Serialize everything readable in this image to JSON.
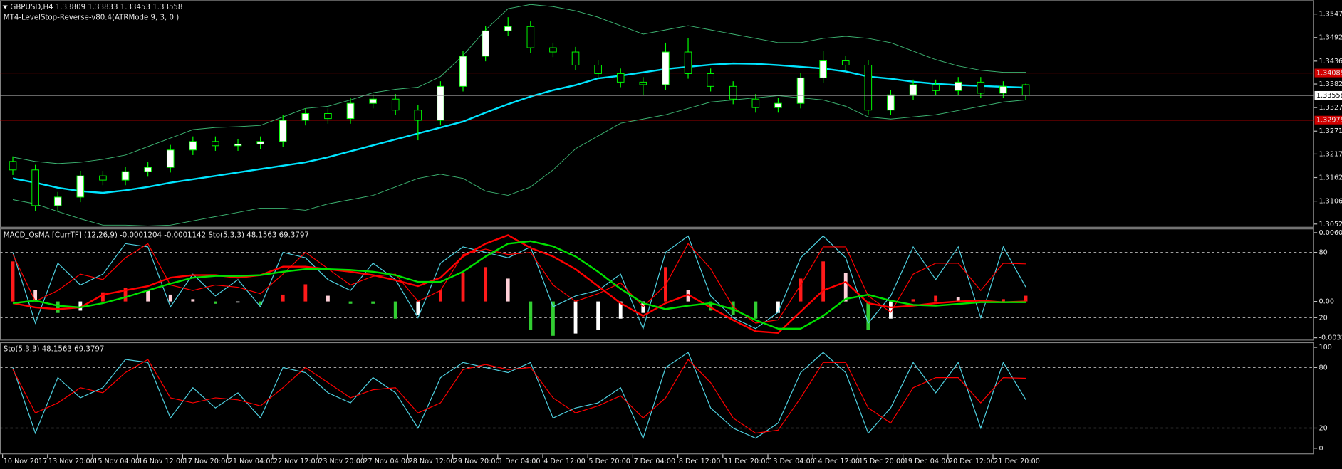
{
  "chart_data": [
    {
      "type": "candlestick",
      "title": "GBPUSD,H4  1.33809 1.33833 1.33453 1.33558",
      "subtitle": "MT4-LevelStop-Reverse-v80.4(ATRMode 9, 3, 0 )",
      "open": [
        1.32,
        1.318,
        1.3096,
        1.3116,
        1.3166,
        1.3156,
        1.3176,
        1.3186,
        1.3227,
        1.3247,
        1.3237,
        1.3241,
        1.3247,
        1.3297,
        1.3313,
        1.3301,
        1.3337,
        1.3347,
        1.3321,
        1.3297,
        1.3377,
        1.3448,
        1.3508,
        1.3518,
        1.3468,
        1.3458,
        1.3427,
        1.3407,
        1.3387,
        1.3381,
        1.3458,
        1.3407,
        1.3377,
        1.3347,
        1.3327,
        1.3337,
        1.3397,
        1.3437,
        1.3427,
        1.3321,
        1.3357,
        1.3381,
        1.3367,
        1.3387,
        1.3361,
        1.33809
      ],
      "high": [
        1.3212,
        1.3192,
        1.3128,
        1.3178,
        1.3178,
        1.3188,
        1.3198,
        1.3239,
        1.3259,
        1.3259,
        1.3253,
        1.3259,
        1.3309,
        1.3325,
        1.3325,
        1.3349,
        1.3359,
        1.3359,
        1.3333,
        1.3389,
        1.346,
        1.352,
        1.354,
        1.353,
        1.348,
        1.347,
        1.3439,
        1.3419,
        1.3399,
        1.348,
        1.349,
        1.3419,
        1.3389,
        1.3359,
        1.3349,
        1.3409,
        1.346,
        1.3449,
        1.3439,
        1.3369,
        1.3393,
        1.3393,
        1.3399,
        1.3399,
        1.3389,
        1.33833
      ],
      "low": [
        1.3168,
        1.3084,
        1.3084,
        1.3104,
        1.3144,
        1.3144,
        1.3164,
        1.3174,
        1.3215,
        1.3225,
        1.3225,
        1.3229,
        1.3235,
        1.3285,
        1.3289,
        1.3289,
        1.3325,
        1.3309,
        1.325,
        1.3285,
        1.3365,
        1.3436,
        1.3496,
        1.3456,
        1.3446,
        1.3415,
        1.3395,
        1.3375,
        1.3355,
        1.3369,
        1.3395,
        1.3365,
        1.3335,
        1.3315,
        1.3315,
        1.3325,
        1.3385,
        1.3415,
        1.3309,
        1.3309,
        1.3345,
        1.3355,
        1.3355,
        1.3349,
        1.3349,
        1.33453
      ],
      "close": [
        1.318,
        1.3096,
        1.3116,
        1.3166,
        1.3156,
        1.3176,
        1.3186,
        1.3227,
        1.3247,
        1.3237,
        1.3241,
        1.3247,
        1.3297,
        1.3313,
        1.3301,
        1.3337,
        1.3347,
        1.3321,
        1.3297,
        1.3377,
        1.3448,
        1.3508,
        1.3518,
        1.3468,
        1.3458,
        1.3427,
        1.3407,
        1.3387,
        1.3381,
        1.3458,
        1.3407,
        1.3377,
        1.3347,
        1.3327,
        1.3337,
        1.3397,
        1.3437,
        1.3427,
        1.3321,
        1.3357,
        1.3381,
        1.3367,
        1.3387,
        1.3361,
        1.3377,
        1.33558
      ],
      "candle_color": "#00ff00",
      "lines": [
        {
          "color": "#00e5ff",
          "values": [
            1.316,
            1.315,
            1.3138,
            1.313,
            1.3126,
            1.3132,
            1.314,
            1.315,
            1.3158,
            1.3166,
            1.3174,
            1.3182,
            1.319,
            1.3198,
            1.321,
            1.3224,
            1.3238,
            1.3252,
            1.3266,
            1.328,
            1.3294,
            1.3315,
            1.3335,
            1.3353,
            1.3368,
            1.338,
            1.3396,
            1.3402,
            1.341,
            1.3418,
            1.3423,
            1.3428,
            1.3431,
            1.343,
            1.3427,
            1.3423,
            1.3419,
            1.3412,
            1.34,
            1.3395,
            1.3388,
            1.3383,
            1.338,
            1.3378,
            1.3376,
            1.3374
          ]
        },
        {
          "color": "#3cb371",
          "values": [
            1.321,
            1.32,
            1.3195,
            1.3198,
            1.3205,
            1.3215,
            1.3235,
            1.3255,
            1.3275,
            1.328,
            1.3282,
            1.3285,
            1.3305,
            1.3325,
            1.333,
            1.3345,
            1.3362,
            1.337,
            1.3375,
            1.34,
            1.345,
            1.351,
            1.356,
            1.357,
            1.3565,
            1.3555,
            1.354,
            1.352,
            1.35,
            1.351,
            1.352,
            1.351,
            1.35,
            1.349,
            1.348,
            1.348,
            1.349,
            1.3495,
            1.349,
            1.348,
            1.346,
            1.344,
            1.3425,
            1.3415,
            1.341,
            1.341
          ]
        },
        {
          "color": "#3cb371",
          "values": [
            1.311,
            1.31,
            1.3082,
            1.3065,
            1.305,
            1.305,
            1.3048,
            1.305,
            1.306,
            1.307,
            1.308,
            1.309,
            1.309,
            1.3085,
            1.31,
            1.311,
            1.312,
            1.314,
            1.316,
            1.317,
            1.316,
            1.313,
            1.312,
            1.314,
            1.318,
            1.323,
            1.326,
            1.329,
            1.33,
            1.331,
            1.3325,
            1.334,
            1.3345,
            1.335,
            1.3355,
            1.335,
            1.3345,
            1.333,
            1.3305,
            1.33,
            1.3305,
            1.331,
            1.332,
            1.333,
            1.334,
            1.3345
          ]
        }
      ],
      "levels": [
        1.34085,
        1.32975
      ],
      "level_color": "#d00000",
      "ylim": [
        1.3046,
        1.3578
      ],
      "yticks": [
        {
          "value": 1.35475,
          "label": "1.35475"
        },
        {
          "value": 1.3492,
          "label": "1.34920"
        },
        {
          "value": 1.34365,
          "label": "1.34365"
        },
        {
          "value": 1.33825,
          "label": "1.33825"
        },
        {
          "value": 1.3327,
          "label": "1.33270"
        },
        {
          "value": 1.32715,
          "label": "1.32715"
        },
        {
          "value": 1.32175,
          "label": "1.32175"
        },
        {
          "value": 1.3162,
          "label": "1.31620"
        },
        {
          "value": 1.31065,
          "label": "1.31065"
        },
        {
          "value": 1.30525,
          "label": "1.30525"
        }
      ]
    },
    {
      "type": "osma",
      "title": "MACD_OsMA [CurrTF] (12,26,9) -0.0001204 -0.0001142  Sto(5,3,3) 48.1563 69.3797",
      "values": [
        0.0035,
        0.001,
        -0.001,
        -0.0008,
        0.0008,
        0.0012,
        0.001,
        0.0006,
        0.0002,
        -0.0002,
        -0.0001,
        -0.0003,
        0.0006,
        0.0015,
        0.0005,
        -0.0002,
        -0.0002,
        -0.0015,
        -0.0012,
        0.001,
        0.0025,
        0.003,
        0.002,
        -0.0025,
        -0.003,
        -0.0028,
        -0.0025,
        -0.0015,
        -0.001,
        0.003,
        0.001,
        -0.0008,
        -0.0012,
        -0.0015,
        -0.001,
        0.002,
        0.0035,
        0.0025,
        -0.0025,
        -0.0015,
        0.0002,
        0.0005,
        0.0004,
        0.0001,
        0.0002,
        0.0005
      ],
      "colors": {
        "pos_up": "#ff1a1a",
        "pos_down": "#ffd0d8",
        "neg_down": "#32cd32",
        "neg_up": "#ffffff"
      },
      "lines": [
        {
          "color": "#ff0000",
          "values": [
            -0.00015,
            -0.00052,
            -0.00067,
            -0.00052,
            0.00059,
            0.00097,
            0.00134,
            0.00208,
            0.0023,
            0.0023,
            0.00208,
            0.0023,
            0.00304,
            0.00304,
            0.00282,
            0.0026,
            0.0023,
            0.00186,
            0.00134,
            0.00208,
            0.00393,
            0.00505,
            0.00579,
            0.00468,
            0.00393,
            0.00282,
            0.00134,
            -0.00015,
            -0.00126,
            -0.00015,
            0.00059,
            -0.00052,
            -0.00163,
            -0.0026,
            -0.00275,
            -0.00089,
            0.00097,
            0.00171,
            -0.00015,
            -0.00052,
            -0.00037,
            -0.00015,
            0,
            7e-05,
            -7e-05,
            0
          ]
        },
        {
          "color": "#00e000",
          "values": [
            -0.00015,
            7e-05,
            -0.00037,
            -0.00052,
            -0.00015,
            0.00037,
            0.00097,
            0.00156,
            0.00208,
            0.00223,
            0.00223,
            0.0023,
            0.0026,
            0.00282,
            0.00282,
            0.00275,
            0.0026,
            0.0023,
            0.00171,
            0.00171,
            0.0026,
            0.00393,
            0.00505,
            0.00527,
            0.00482,
            0.00393,
            0.0026,
            0.00111,
            -0.00015,
            -0.00067,
            -0.00037,
            -0.00015,
            -0.00067,
            -0.00163,
            -0.00238,
            -0.00238,
            -0.00126,
            0.00022,
            0.00059,
            7e-05,
            -0.0003,
            -0.00037,
            -0.00022,
            -7e-05,
            -7e-05,
            -7e-05
          ]
        }
      ],
      "ylim": [
        -0.00334,
        0.0063
      ],
      "yticks": [
        0.006012,
        {
          "value": 0,
          "label": "0.00"
        },
        -0.003175
      ],
      "y2lim": [
        -0.2,
        101.1
      ],
      "y2ticks": [
        80,
        20
      ]
    },
    {
      "type": "line",
      "title": "Sto(5,3,3) 48.1563 69.3797",
      "series": [
        {
          "color": "#4fd0e0",
          "values": [
            80,
            15,
            70,
            50,
            60,
            88,
            85,
            30,
            60,
            40,
            55,
            30,
            80,
            75,
            55,
            45,
            70,
            55,
            20,
            70,
            85,
            80,
            75,
            85,
            30,
            40,
            45,
            60,
            10,
            80,
            95,
            40,
            20,
            10,
            25,
            75,
            95,
            75,
            15,
            40,
            85,
            55,
            85,
            20,
            85,
            48.1563
          ]
        },
        {
          "color": "#ff0000",
          "values": [
            78,
            35,
            45,
            60,
            55,
            75,
            88,
            50,
            45,
            50,
            48,
            42,
            60,
            80,
            65,
            50,
            58,
            60,
            35,
            45,
            78,
            83,
            78,
            80,
            50,
            35,
            42,
            52,
            30,
            50,
            88,
            65,
            30,
            15,
            18,
            50,
            85,
            85,
            40,
            25,
            60,
            70,
            70,
            45,
            70,
            69.3797
          ]
        }
      ],
      "ylim": [
        -5.1,
        104.2
      ],
      "yticks": [
        100,
        80,
        20,
        0
      ],
      "x_labels": [
        "10 Nov 2017",
        "13 Nov 20:00",
        "15 Nov 04:00",
        "16 Nov 12:00",
        "17 Nov 20:00",
        "21 Nov 04:00",
        "22 Nov 12:00",
        "23 Nov 20:00",
        "27 Nov 04:00",
        "28 Nov 12:00",
        "29 Nov 20:00",
        "1 Dec 04:00",
        "4 Dec 12:00",
        "5 Dec 20:00",
        "7 Dec 04:00",
        "8 Dec 12:00",
        "11 Dec 20:00",
        "13 Dec 04:00",
        "14 Dec 12:00",
        "15 Dec 20:00",
        "19 Dec 04:00",
        "20 Dec 12:00",
        "21 Dec 20:00"
      ]
    }
  ]
}
